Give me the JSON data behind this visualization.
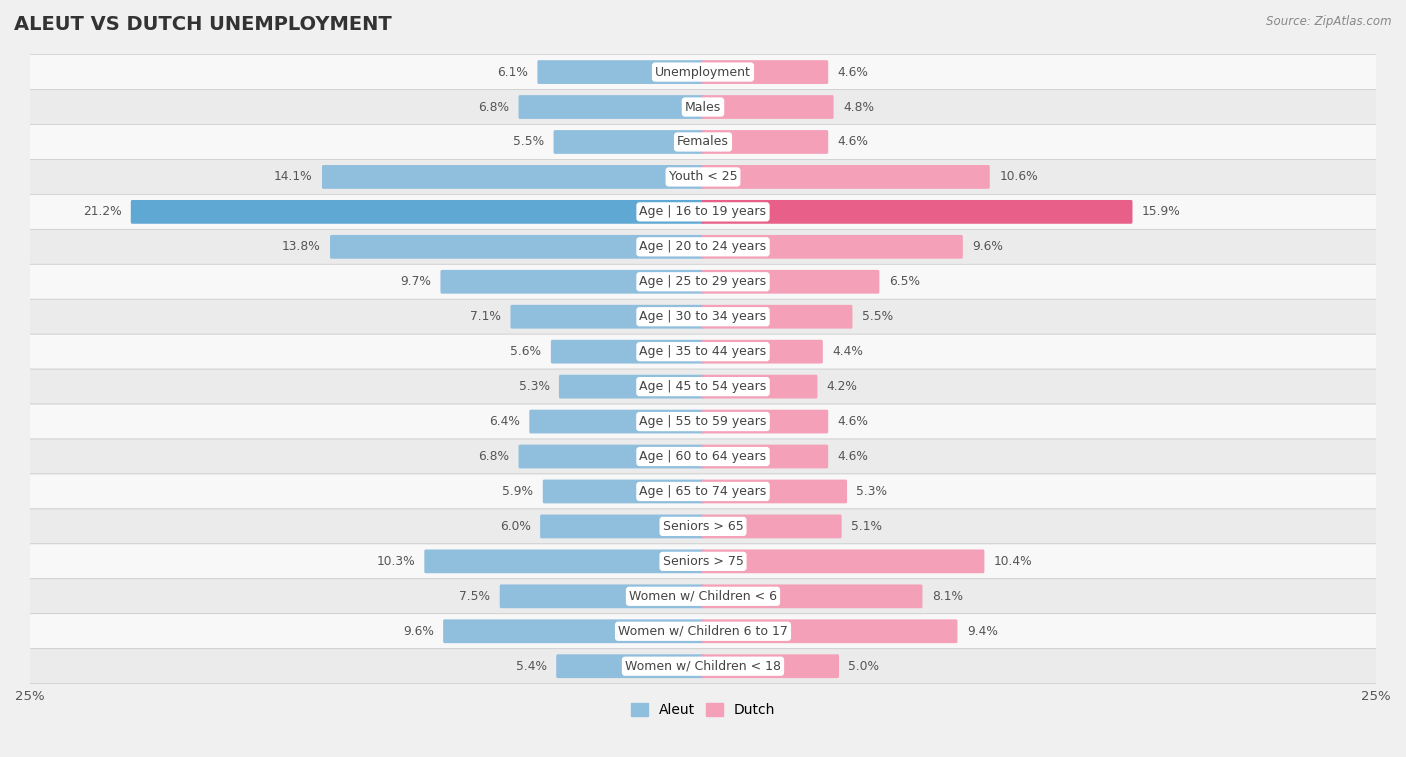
{
  "title": "ALEUT VS DUTCH UNEMPLOYMENT",
  "source": "Source: ZipAtlas.com",
  "categories": [
    "Unemployment",
    "Males",
    "Females",
    "Youth < 25",
    "Age | 16 to 19 years",
    "Age | 20 to 24 years",
    "Age | 25 to 29 years",
    "Age | 30 to 34 years",
    "Age | 35 to 44 years",
    "Age | 45 to 54 years",
    "Age | 55 to 59 years",
    "Age | 60 to 64 years",
    "Age | 65 to 74 years",
    "Seniors > 65",
    "Seniors > 75",
    "Women w/ Children < 6",
    "Women w/ Children 6 to 17",
    "Women w/ Children < 18"
  ],
  "aleut": [
    6.1,
    6.8,
    5.5,
    14.1,
    21.2,
    13.8,
    9.7,
    7.1,
    5.6,
    5.3,
    6.4,
    6.8,
    5.9,
    6.0,
    10.3,
    7.5,
    9.6,
    5.4
  ],
  "dutch": [
    4.6,
    4.8,
    4.6,
    10.6,
    15.9,
    9.6,
    6.5,
    5.5,
    4.4,
    4.2,
    4.6,
    4.6,
    5.3,
    5.1,
    10.4,
    8.1,
    9.4,
    5.0
  ],
  "aleut_color": "#90bedd",
  "dutch_color": "#f4a0b8",
  "aleut_highlight_color": "#5fa8d3",
  "dutch_highlight_color": "#e8608a",
  "bar_height": 0.58,
  "xlim": 25.0,
  "bg_color": "#f0f0f0",
  "row_colors": [
    "#f8f8f8",
    "#ebebeb"
  ],
  "label_fontsize": 9.0,
  "value_fontsize": 8.8,
  "title_fontsize": 14,
  "legend_fontsize": 10
}
